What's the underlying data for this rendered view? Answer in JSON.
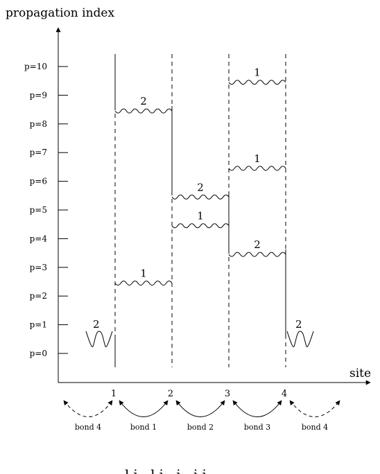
{
  "axes": {
    "y_title": "propagation index",
    "x_title": "site"
  },
  "y_ticks": [
    "p=0",
    "p=1",
    "p=2",
    "p=3",
    "p=4",
    "p=5",
    "p=6",
    "p=7",
    "p=8",
    "p=9",
    "p=10"
  ],
  "sites": [
    "1",
    "2",
    "3",
    "4"
  ],
  "bonds": {
    "items": [
      {
        "label": "bond 4",
        "style": "dashed"
      },
      {
        "label": "bond 1",
        "style": "solid"
      },
      {
        "label": "bond 2",
        "style": "solid"
      },
      {
        "label": "bond 3",
        "style": "solid"
      },
      {
        "label": "bond 4",
        "style": "dashed"
      }
    ]
  },
  "propagators": [
    {
      "bond": 1,
      "p": 2.5,
      "label": "1"
    },
    {
      "bond": 1,
      "p": 8.5,
      "label": "2"
    },
    {
      "bond": 2,
      "p": 4.5,
      "label": "1"
    },
    {
      "bond": 2,
      "p": 5.5,
      "label": "2"
    },
    {
      "bond": 3,
      "p": 3.5,
      "label": "2"
    },
    {
      "bond": 3,
      "p": 6.5,
      "label": "1"
    },
    {
      "bond": 3,
      "p": 9.5,
      "label": "1"
    }
  ],
  "loops": [
    {
      "side": "left",
      "label": "2"
    },
    {
      "side": "right",
      "label": "2"
    }
  ],
  "bottom_text": "li   li  i   ii"
}
